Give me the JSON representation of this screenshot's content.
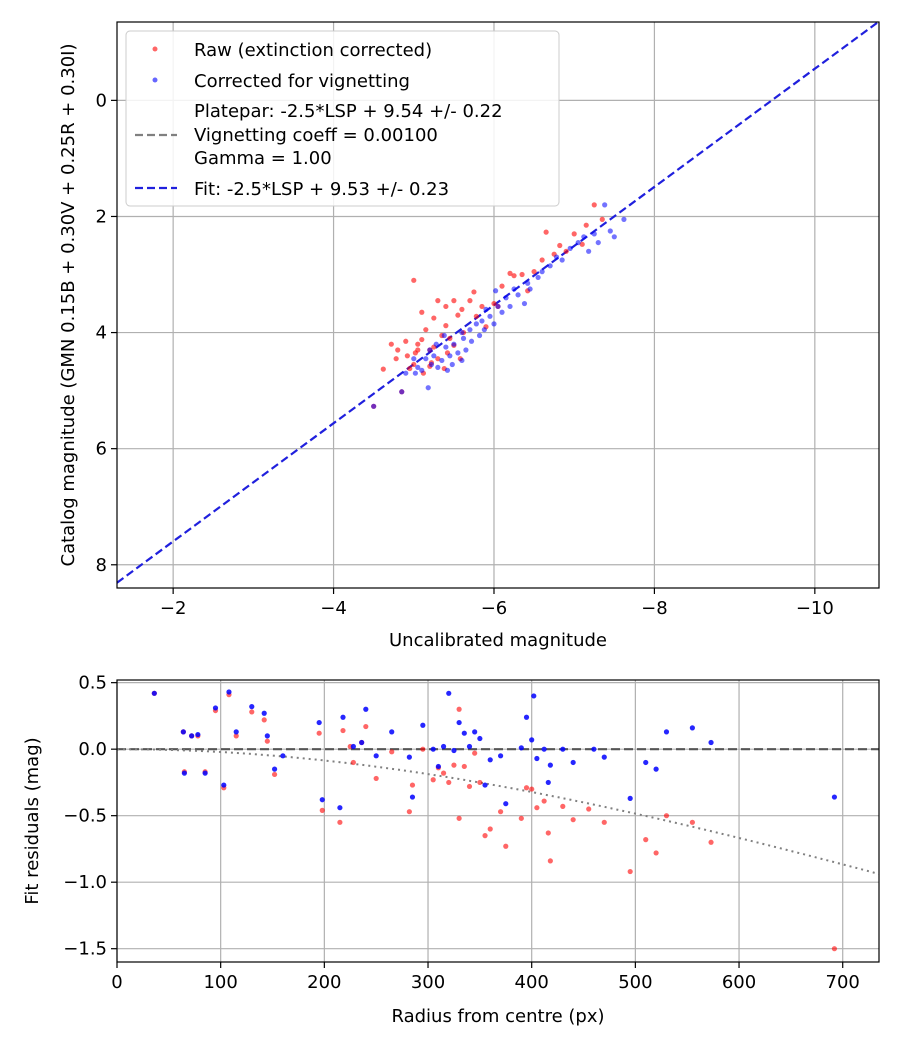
{
  "chart_data": [
    {
      "type": "scatter",
      "xlabel": "Uncalibrated magnitude",
      "ylabel": "Catalog magnitude (GMN 0.15B + 0.30V + 0.25R + 0.30I)",
      "xlim": [
        -1.3,
        -10.8
      ],
      "ylim": [
        8.4,
        -1.35
      ],
      "xticks": [
        -2,
        -4,
        -6,
        -8,
        -10
      ],
      "xtick_labels": [
        "−2",
        "−4",
        "−6",
        "−8",
        "−10"
      ],
      "yticks": [
        0,
        2,
        4,
        6,
        8
      ],
      "ytick_labels": [
        "0",
        "2",
        "4",
        "6",
        "8"
      ],
      "grid": true,
      "legend_position": "upper-left",
      "legend": {
        "raw": "Raw (extinction corrected)",
        "corrected": "Corrected for vignetting",
        "platepar_lines": [
          "Platepar: -2.5*LSP + 9.54 +/- 0.22",
          "Vignetting coeff = 0.00100",
          "Gamma = 1.00"
        ],
        "fit": "Fit: -2.5*LSP + 9.53 +/- 0.23"
      },
      "fit_line": {
        "x": [
          -1.3,
          -10.8
        ],
        "y": [
          8.31,
          -1.36
        ]
      },
      "series": [
        {
          "name": "Raw (extinction corrected)",
          "color": "#ff0000",
          "points": [
            [
              -4.5,
              5.27
            ],
            [
              -4.62,
              4.63
            ],
            [
              -4.72,
              4.2
            ],
            [
              -4.78,
              4.45
            ],
            [
              -4.8,
              4.3
            ],
            [
              -4.85,
              5.02
            ],
            [
              -4.9,
              4.15
            ],
            [
              -4.92,
              4.4
            ],
            [
              -4.95,
              4.62
            ],
            [
              -5.0,
              3.1
            ],
            [
              -5.0,
              4.55
            ],
            [
              -5.05,
              4.2
            ],
            [
              -5.05,
              4.3
            ],
            [
              -5.1,
              3.65
            ],
            [
              -5.1,
              4.12
            ],
            [
              -5.12,
              4.7
            ],
            [
              -5.15,
              3.95
            ],
            [
              -5.2,
              4.3
            ],
            [
              -5.2,
              4.58
            ],
            [
              -5.25,
              3.75
            ],
            [
              -5.25,
              4.25
            ],
            [
              -5.3,
              4.45
            ],
            [
              -5.3,
              3.45
            ],
            [
              -5.35,
              4.05
            ],
            [
              -5.38,
              4.62
            ],
            [
              -5.4,
              3.55
            ],
            [
              -5.4,
              3.88
            ],
            [
              -5.45,
              4.1
            ],
            [
              -5.5,
              3.45
            ],
            [
              -5.5,
              4.22
            ],
            [
              -5.55,
              3.7
            ],
            [
              -5.6,
              3.6
            ],
            [
              -5.62,
              4.0
            ],
            [
              -5.7,
              3.45
            ],
            [
              -5.75,
              3.3
            ],
            [
              -5.78,
              3.72
            ],
            [
              -5.85,
              3.55
            ],
            [
              -5.9,
              3.9
            ],
            [
              -6.0,
              3.5
            ],
            [
              -6.05,
              3.55
            ],
            [
              -6.1,
              3.2
            ],
            [
              -6.2,
              2.98
            ],
            [
              -6.25,
              3.02
            ],
            [
              -6.35,
              3.0
            ],
            [
              -6.42,
              3.28
            ],
            [
              -6.5,
              2.95
            ],
            [
              -6.6,
              2.75
            ],
            [
              -6.65,
              2.27
            ],
            [
              -6.75,
              2.65
            ],
            [
              -6.82,
              2.5
            ],
            [
              -6.9,
              2.6
            ],
            [
              -7.0,
              2.3
            ],
            [
              -7.1,
              2.48
            ],
            [
              -7.15,
              2.15
            ],
            [
              -7.25,
              1.8
            ],
            [
              -7.35,
              2.05
            ],
            [
              -5.42,
              4.35
            ],
            [
              -5.02,
              4.35
            ],
            [
              -5.58,
              4.45
            ],
            [
              -5.22,
              4.52
            ]
          ]
        },
        {
          "name": "Corrected for vignetting",
          "color": "#0000ff",
          "points": [
            [
              -4.5,
              5.27
            ],
            [
              -4.85,
              5.02
            ],
            [
              -4.9,
              4.7
            ],
            [
              -5.0,
              4.45
            ],
            [
              -5.02,
              4.7
            ],
            [
              -5.05,
              4.6
            ],
            [
              -5.1,
              4.65
            ],
            [
              -5.15,
              4.45
            ],
            [
              -5.18,
              4.95
            ],
            [
              -5.2,
              4.3
            ],
            [
              -5.22,
              4.55
            ],
            [
              -5.25,
              4.4
            ],
            [
              -5.28,
              4.2
            ],
            [
              -5.3,
              4.6
            ],
            [
              -5.35,
              4.48
            ],
            [
              -5.4,
              4.25
            ],
            [
              -5.42,
              4.65
            ],
            [
              -5.45,
              4.4
            ],
            [
              -5.48,
              4.55
            ],
            [
              -5.5,
              4.2
            ],
            [
              -5.55,
              4.35
            ],
            [
              -5.6,
              4.48
            ],
            [
              -5.62,
              4.1
            ],
            [
              -5.65,
              4.3
            ],
            [
              -5.7,
              3.95
            ],
            [
              -5.72,
              4.15
            ],
            [
              -5.78,
              3.85
            ],
            [
              -5.82,
              4.05
            ],
            [
              -5.85,
              3.8
            ],
            [
              -5.88,
              3.95
            ],
            [
              -5.9,
              3.6
            ],
            [
              -5.95,
              3.72
            ],
            [
              -6.0,
              3.85
            ],
            [
              -6.05,
              3.55
            ],
            [
              -6.1,
              3.65
            ],
            [
              -6.15,
              3.4
            ],
            [
              -6.2,
              3.55
            ],
            [
              -6.25,
              3.25
            ],
            [
              -6.3,
              3.35
            ],
            [
              -6.38,
              3.5
            ],
            [
              -6.42,
              3.15
            ],
            [
              -6.45,
              3.25
            ],
            [
              -6.55,
              3.05
            ],
            [
              -6.6,
              2.95
            ],
            [
              -6.7,
              2.85
            ],
            [
              -6.78,
              2.7
            ],
            [
              -6.85,
              2.75
            ],
            [
              -6.95,
              2.55
            ],
            [
              -7.05,
              2.45
            ],
            [
              -7.12,
              2.35
            ],
            [
              -7.18,
              2.6
            ],
            [
              -7.25,
              2.3
            ],
            [
              -7.3,
              2.45
            ],
            [
              -7.38,
              1.8
            ],
            [
              -7.45,
              2.25
            ],
            [
              -7.5,
              2.35
            ],
            [
              -7.62,
              2.05
            ],
            [
              -5.6,
              4.0
            ],
            [
              -5.38,
              4.05
            ],
            [
              -6.02,
              3.28
            ]
          ]
        }
      ]
    },
    {
      "type": "scatter",
      "xlabel": "Radius from centre (px)",
      "ylabel": "Fit residuals (mag)",
      "xlim": [
        0,
        735
      ],
      "ylim": [
        -1.6,
        0.52
      ],
      "xticks": [
        0,
        100,
        200,
        300,
        400,
        500,
        600,
        700
      ],
      "xtick_labels": [
        "0",
        "100",
        "200",
        "300",
        "400",
        "500",
        "600",
        "700"
      ],
      "yticks": [
        0.5,
        0.0,
        -0.5,
        -1.0,
        -1.5
      ],
      "ytick_labels": [
        "0.5",
        "0.0",
        "−0.5",
        "−1.0",
        "−1.5"
      ],
      "grid": true,
      "reference_line_y": 0,
      "vignetting_coeff": 0.001,
      "series": [
        {
          "name": "Raw",
          "color": "#ff0000",
          "points": [
            [
              36,
              0.42
            ],
            [
              64,
              0.13
            ],
            [
              65,
              -0.17
            ],
            [
              72,
              0.1
            ],
            [
              78,
              0.1
            ],
            [
              85,
              -0.17
            ],
            [
              95,
              0.29
            ],
            [
              103,
              -0.29
            ],
            [
              108,
              0.41
            ],
            [
              115,
              0.1
            ],
            [
              130,
              0.28
            ],
            [
              142,
              0.22
            ],
            [
              145,
              0.06
            ],
            [
              152,
              -0.19
            ],
            [
              195,
              0.12
            ],
            [
              198,
              -0.46
            ],
            [
              215,
              -0.55
            ],
            [
              218,
              0.14
            ],
            [
              228,
              -0.1
            ],
            [
              236,
              0.05
            ],
            [
              240,
              0.17
            ],
            [
              250,
              -0.22
            ],
            [
              265,
              -0.02
            ],
            [
              282,
              -0.47
            ],
            [
              285,
              -0.27
            ],
            [
              295,
              0.0
            ],
            [
              305,
              -0.23
            ],
            [
              310,
              -0.14
            ],
            [
              315,
              -0.18
            ],
            [
              320,
              -0.25
            ],
            [
              325,
              -0.12
            ],
            [
              330,
              -0.52
            ],
            [
              335,
              -0.13
            ],
            [
              340,
              -0.28
            ],
            [
              345,
              -0.03
            ],
            [
              350,
              -0.25
            ],
            [
              355,
              -0.65
            ],
            [
              360,
              -0.6
            ],
            [
              370,
              -0.47
            ],
            [
              375,
              -0.73
            ],
            [
              390,
              -0.52
            ],
            [
              395,
              -0.29
            ],
            [
              400,
              -0.3
            ],
            [
              405,
              -0.44
            ],
            [
              412,
              -0.39
            ],
            [
              416,
              -0.63
            ],
            [
              418,
              -0.84
            ],
            [
              430,
              -0.43
            ],
            [
              440,
              -0.53
            ],
            [
              455,
              -0.45
            ],
            [
              470,
              -0.55
            ],
            [
              495,
              -0.92
            ],
            [
              510,
              -0.68
            ],
            [
              520,
              -0.78
            ],
            [
              530,
              -0.5
            ],
            [
              555,
              -0.55
            ],
            [
              573,
              -0.7
            ],
            [
              692,
              -1.5
            ],
            [
              330,
              0.3
            ],
            [
              225,
              0.02
            ]
          ]
        },
        {
          "name": "Corrected",
          "color": "#0000ff",
          "points": [
            [
              36,
              0.42
            ],
            [
              64,
              0.13
            ],
            [
              65,
              -0.18
            ],
            [
              72,
              0.1
            ],
            [
              78,
              0.11
            ],
            [
              85,
              -0.18
            ],
            [
              95,
              0.31
            ],
            [
              103,
              -0.27
            ],
            [
              108,
              0.43
            ],
            [
              115,
              0.13
            ],
            [
              130,
              0.32
            ],
            [
              142,
              0.27
            ],
            [
              145,
              0.1
            ],
            [
              152,
              -0.15
            ],
            [
              160,
              -0.05
            ],
            [
              195,
              0.2
            ],
            [
              198,
              -0.38
            ],
            [
              215,
              -0.44
            ],
            [
              218,
              0.24
            ],
            [
              228,
              0.02
            ],
            [
              236,
              0.05
            ],
            [
              240,
              0.3
            ],
            [
              250,
              -0.05
            ],
            [
              265,
              0.13
            ],
            [
              282,
              -0.06
            ],
            [
              285,
              -0.36
            ],
            [
              295,
              0.18
            ],
            [
              305,
              0.0
            ],
            [
              310,
              -0.13
            ],
            [
              315,
              0.02
            ],
            [
              320,
              0.42
            ],
            [
              325,
              -0.01
            ],
            [
              330,
              0.2
            ],
            [
              335,
              0.12
            ],
            [
              340,
              0.02
            ],
            [
              345,
              0.13
            ],
            [
              350,
              0.08
            ],
            [
              355,
              -0.27
            ],
            [
              360,
              -0.08
            ],
            [
              370,
              -0.05
            ],
            [
              375,
              -0.41
            ],
            [
              390,
              0.01
            ],
            [
              395,
              0.24
            ],
            [
              400,
              0.07
            ],
            [
              402,
              0.4
            ],
            [
              405,
              -0.07
            ],
            [
              412,
              0.0
            ],
            [
              416,
              -0.25
            ],
            [
              418,
              -0.12
            ],
            [
              430,
              0.0
            ],
            [
              440,
              -0.1
            ],
            [
              460,
              0.0
            ],
            [
              470,
              -0.06
            ],
            [
              495,
              -0.37
            ],
            [
              510,
              -0.1
            ],
            [
              520,
              -0.15
            ],
            [
              530,
              0.13
            ],
            [
              555,
              0.16
            ],
            [
              573,
              0.05
            ],
            [
              692,
              -0.36
            ]
          ]
        }
      ]
    }
  ]
}
